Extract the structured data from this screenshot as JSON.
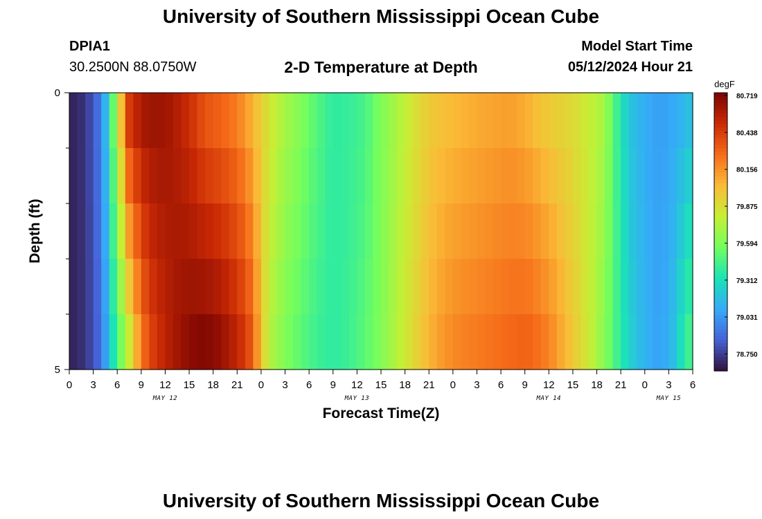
{
  "header": {
    "title": "University of Southern Mississippi Ocean Cube",
    "station": "DPIA1",
    "coords": "30.2500N  88.0750W",
    "subtitle": "2-D Temperature at Depth",
    "model_start_label": "Model Start Time",
    "model_start_value": "05/12/2024 Hour 21"
  },
  "footer": {
    "title": "University of Southern Mississippi Ocean Cube"
  },
  "chart_data": {
    "type": "heatmap",
    "xlabel": "Forecast Time(Z)",
    "ylabel": "Depth (ft)",
    "x_range_hours": [
      0,
      78
    ],
    "x_ticks": [
      "0",
      "3",
      "6",
      "9",
      "12",
      "15",
      "18",
      "21",
      "0",
      "3",
      "6",
      "9",
      "12",
      "15",
      "18",
      "21",
      "0",
      "3",
      "6",
      "9",
      "12",
      "15",
      "18",
      "21",
      "0",
      "3",
      "6"
    ],
    "date_labels": [
      {
        "label": "MAY 12",
        "hour": 12
      },
      {
        "label": "MAY 13",
        "hour": 36
      },
      {
        "label": "MAY 14",
        "hour": 60
      },
      {
        "label": "MAY 15",
        "hour": 75
      }
    ],
    "y_range": [
      0,
      5
    ],
    "y_ticks": [
      "0",
      "5"
    ],
    "depth_layers": 5,
    "colorbar": {
      "unit": "degF",
      "min": 78.62,
      "max": 80.74,
      "ticks": [
        "80.719",
        "80.438",
        "80.156",
        "79.875",
        "79.594",
        "79.312",
        "79.031",
        "78.750"
      ],
      "colors": [
        "#30123b",
        "#4662d7",
        "#35abf8",
        "#1ae4b6",
        "#72fe5e",
        "#c7ef34",
        "#fabb37",
        "#f66b19",
        "#ca2a04",
        "#7a0403"
      ]
    },
    "surface_profile": [
      [
        0,
        78.66
      ],
      [
        2,
        78.72
      ],
      [
        4,
        78.95
      ],
      [
        5,
        79.3
      ],
      [
        6,
        79.75
      ],
      [
        6.6,
        80.05
      ],
      [
        7.3,
        80.42
      ],
      [
        9,
        80.6
      ],
      [
        11,
        80.65
      ],
      [
        13,
        80.6
      ],
      [
        15,
        80.5
      ],
      [
        17,
        80.35
      ],
      [
        19,
        80.3
      ],
      [
        21,
        80.22
      ],
      [
        23,
        80.05
      ],
      [
        24,
        79.95
      ],
      [
        25,
        79.85
      ],
      [
        27,
        79.7
      ],
      [
        29,
        79.6
      ],
      [
        31,
        79.48
      ],
      [
        33,
        79.38
      ],
      [
        35,
        79.4
      ],
      [
        37,
        79.45
      ],
      [
        39,
        79.6
      ],
      [
        41,
        79.72
      ],
      [
        43,
        79.85
      ],
      [
        45,
        79.97
      ],
      [
        47,
        80.02
      ],
      [
        49,
        80.05
      ],
      [
        51,
        80.08
      ],
      [
        53,
        80.1
      ],
      [
        55,
        80.12
      ],
      [
        57,
        80.08
      ],
      [
        59,
        80.0
      ],
      [
        61,
        79.95
      ],
      [
        63,
        79.9
      ],
      [
        65,
        79.8
      ],
      [
        67,
        79.7
      ],
      [
        68,
        79.5
      ],
      [
        69,
        79.35
      ],
      [
        70,
        79.2
      ],
      [
        72,
        79.1
      ],
      [
        74,
        79.05
      ],
      [
        76,
        79.1
      ],
      [
        78,
        79.2
      ]
    ],
    "bottom_profile": [
      [
        0,
        78.66
      ],
      [
        2,
        78.72
      ],
      [
        4,
        78.9
      ],
      [
        5,
        79.2
      ],
      [
        6,
        79.45
      ],
      [
        7,
        79.7
      ],
      [
        8,
        79.95
      ],
      [
        9,
        80.22
      ],
      [
        10,
        80.4
      ],
      [
        12,
        80.55
      ],
      [
        14,
        80.65
      ],
      [
        16,
        80.71
      ],
      [
        18,
        80.7
      ],
      [
        20,
        80.6
      ],
      [
        22,
        80.45
      ],
      [
        23,
        80.3
      ],
      [
        24,
        80.0
      ],
      [
        25,
        79.75
      ],
      [
        27,
        79.6
      ],
      [
        29,
        79.5
      ],
      [
        31,
        79.42
      ],
      [
        33,
        79.38
      ],
      [
        35,
        79.42
      ],
      [
        37,
        79.5
      ],
      [
        39,
        79.6
      ],
      [
        41,
        79.75
      ],
      [
        43,
        79.9
      ],
      [
        45,
        80.05
      ],
      [
        47,
        80.15
      ],
      [
        49,
        80.2
      ],
      [
        51,
        80.22
      ],
      [
        53,
        80.25
      ],
      [
        55,
        80.28
      ],
      [
        57,
        80.3
      ],
      [
        58,
        80.28
      ],
      [
        60,
        80.2
      ],
      [
        62,
        80.05
      ],
      [
        64,
        79.9
      ],
      [
        66,
        79.72
      ],
      [
        68,
        79.5
      ],
      [
        70,
        79.25
      ],
      [
        72,
        79.12
      ],
      [
        74,
        79.05
      ],
      [
        76,
        79.2
      ],
      [
        77,
        79.4
      ],
      [
        78,
        79.45
      ]
    ]
  }
}
